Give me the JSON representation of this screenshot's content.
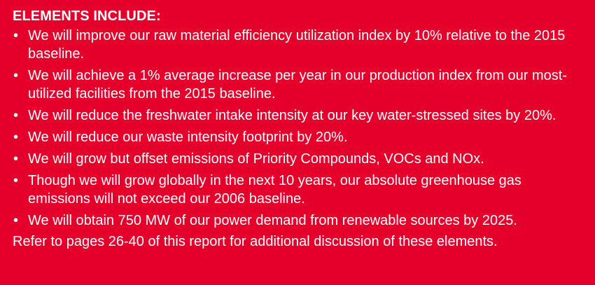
{
  "heading": "ELEMENTS INCLUDE:",
  "bullet_glyph": "•",
  "items": [
    "We will improve our raw material efficiency utilization index by 10% relative to the 2015 baseline.",
    "We will achieve a 1% average increase per year in our production index from our most-utilized facilities from the 2015 baseline.",
    "We will reduce the freshwater intake intensity at our key water-stressed sites by 20%.",
    "We will reduce our waste intensity footprint by 20%.",
    "We will grow but offset emissions of Priority Compounds, VOCs and NOx.",
    "Though we will grow globally in the next 10 years, our absolute greenhouse gas emissions will not exceed our 2006 baseline.",
    "We will obtain 750 MW of our power demand from renewable sources by 2025."
  ],
  "footer": "Refer to pages 26-40 of this report for additional discussion of these elements.",
  "colors": {
    "background": "#e4002b",
    "text": "#ffffff"
  }
}
